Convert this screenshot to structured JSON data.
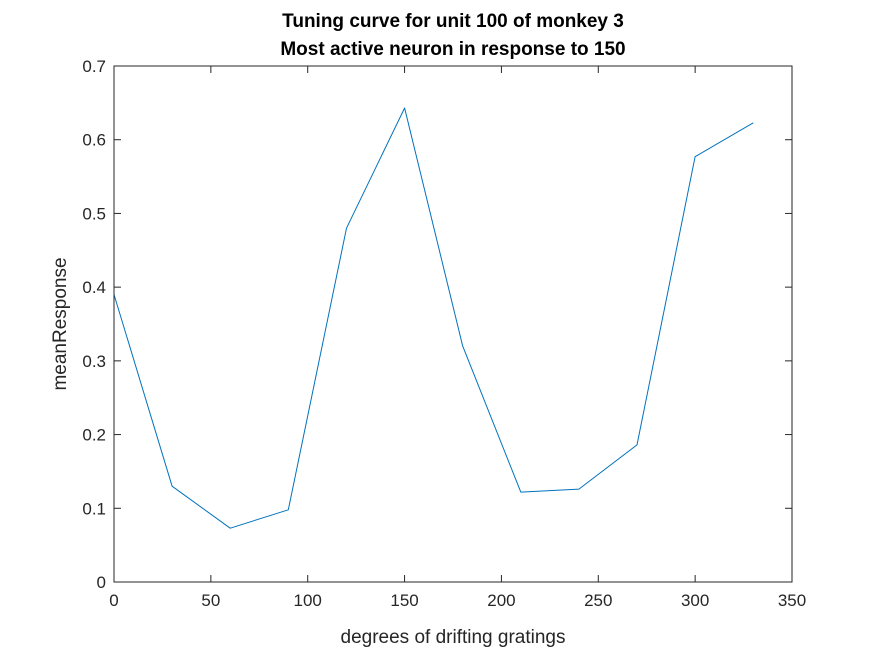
{
  "chart_data": {
    "type": "line",
    "title": [
      "Tuning curve for unit 100 of monkey 3",
      "Most active neuron in response to 150"
    ],
    "xlabel": "degrees of drifting gratings",
    "ylabel": "meanResponse",
    "xlim": [
      0,
      350
    ],
    "ylim": [
      0,
      0.7
    ],
    "xticks": [
      0,
      50,
      100,
      150,
      200,
      250,
      300,
      350
    ],
    "yticks": [
      0,
      0.1,
      0.2,
      0.3,
      0.4,
      0.5,
      0.6,
      0.7
    ],
    "grid": false,
    "series": [
      {
        "color": "#0072BD",
        "x": [
          0,
          30,
          60,
          90,
          120,
          150,
          180,
          210,
          240,
          270,
          300,
          330
        ],
        "y": [
          0.39,
          0.13,
          0.073,
          0.098,
          0.48,
          0.643,
          0.32,
          0.122,
          0.126,
          0.186,
          0.577,
          0.623
        ]
      }
    ]
  }
}
